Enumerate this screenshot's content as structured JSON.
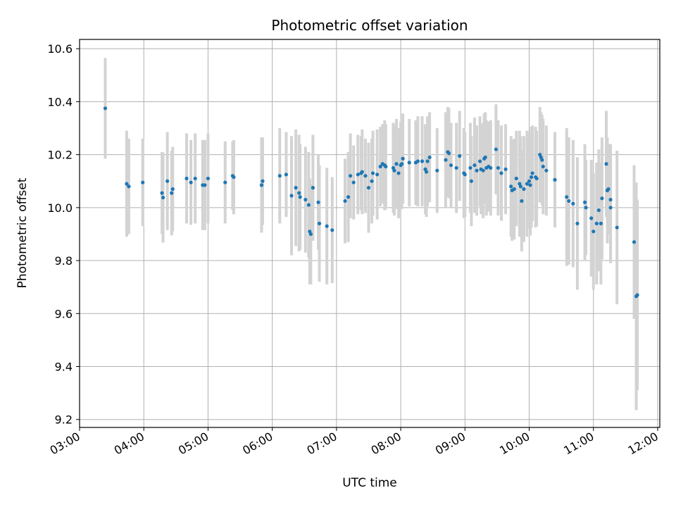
{
  "chart_data": {
    "type": "scatter",
    "title": "Photometric offset variation",
    "xlabel": "UTC time",
    "ylabel": "Photometric offset",
    "xlim": [
      "03:00",
      "12:02"
    ],
    "ylim": [
      9.17,
      10.635
    ],
    "x_ticks": [
      "03:00",
      "04:00",
      "05:00",
      "06:00",
      "07:00",
      "08:00",
      "09:00",
      "10:00",
      "11:00",
      "12:00"
    ],
    "y_ticks": [
      9.2,
      9.4,
      9.6,
      9.8,
      10.0,
      10.2,
      10.4,
      10.6
    ],
    "y_tick_labels": [
      "9.2",
      "9.4",
      "9.6",
      "9.8",
      "10.0",
      "10.2",
      "10.4",
      "10.6"
    ],
    "grid": true,
    "marker_color": "#1f77b4",
    "errorbar_color": "#d3d3d3",
    "points": [
      [
        "03:24",
        10.375,
        0.19
      ],
      [
        "03:44",
        10.09,
        0.2
      ],
      [
        "03:46",
        10.08,
        0.18
      ],
      [
        "03:59",
        10.095,
        0.165
      ],
      [
        "04:17",
        10.055,
        0.155
      ],
      [
        "04:18",
        10.038,
        0.17
      ],
      [
        "04:22",
        10.1,
        0.185
      ],
      [
        "04:26",
        10.055,
        0.16
      ],
      [
        "04:27",
        10.07,
        0.16
      ],
      [
        "04:40",
        10.11,
        0.17
      ],
      [
        "04:44",
        10.095,
        0.16
      ],
      [
        "04:48",
        10.11,
        0.17
      ],
      [
        "04:55",
        10.085,
        0.17
      ],
      [
        "04:57",
        10.085,
        0.17
      ],
      [
        "05:00",
        10.11,
        0.17
      ],
      [
        "05:16",
        10.095,
        0.155
      ],
      [
        "05:23",
        10.12,
        0.13
      ],
      [
        "05:24",
        10.115,
        0.14
      ],
      [
        "05:50",
        10.085,
        0.18
      ],
      [
        "05:51",
        10.1,
        0.165
      ],
      [
        "06:07",
        10.12,
        0.18
      ],
      [
        "06:13",
        10.125,
        0.16
      ],
      [
        "06:18",
        10.045,
        0.225
      ],
      [
        "06:22",
        10.075,
        0.22
      ],
      [
        "06:25",
        10.055,
        0.22
      ],
      [
        "06:26",
        10.04,
        0.2
      ],
      [
        "06:31",
        10.03,
        0.2
      ],
      [
        "06:34",
        10.01,
        0.2
      ],
      [
        "06:35",
        9.91,
        0.2
      ],
      [
        "06:36",
        9.9,
        0.19
      ],
      [
        "06:38",
        10.075,
        0.2
      ],
      [
        "06:43",
        10.02,
        0.18
      ],
      [
        "06:44",
        9.94,
        0.22
      ],
      [
        "06:51",
        9.93,
        0.22
      ],
      [
        "06:56",
        9.915,
        0.2
      ],
      [
        "07:08",
        10.025,
        0.16
      ],
      [
        "07:11",
        10.04,
        0.17
      ],
      [
        "07:13",
        10.12,
        0.16
      ],
      [
        "07:16",
        10.095,
        0.14
      ],
      [
        "07:20",
        10.125,
        0.15
      ],
      [
        "07:23",
        10.13,
        0.14
      ],
      [
        "07:24",
        10.135,
        0.16
      ],
      [
        "07:27",
        10.12,
        0.14
      ],
      [
        "07:30",
        10.075,
        0.17
      ],
      [
        "07:33",
        10.1,
        0.16
      ],
      [
        "07:34",
        10.13,
        0.16
      ],
      [
        "07:38",
        10.125,
        0.17
      ],
      [
        "07:41",
        10.155,
        0.15
      ],
      [
        "07:43",
        10.165,
        0.15
      ],
      [
        "07:45",
        10.16,
        0.17
      ],
      [
        "07:46",
        10.155,
        0.16
      ],
      [
        "07:53",
        10.15,
        0.17
      ],
      [
        "07:54",
        10.14,
        0.17
      ],
      [
        "07:56",
        10.165,
        0.17
      ],
      [
        "07:58",
        10.13,
        0.17
      ],
      [
        "08:00",
        10.16,
        0.165
      ],
      [
        "08:01",
        10.165,
        0.17
      ],
      [
        "08:02",
        10.185,
        0.17
      ],
      [
        "08:08",
        10.17,
        0.165
      ],
      [
        "08:14",
        10.17,
        0.16
      ],
      [
        "08:16",
        10.175,
        0.17
      ],
      [
        "08:20",
        10.175,
        0.17
      ],
      [
        "08:23",
        10.145,
        0.17
      ],
      [
        "08:24",
        10.135,
        0.17
      ],
      [
        "08:25",
        10.175,
        0.17
      ],
      [
        "08:27",
        10.19,
        0.17
      ],
      [
        "08:34",
        10.14,
        0.16
      ],
      [
        "08:42",
        10.18,
        0.18
      ],
      [
        "08:44",
        10.21,
        0.17
      ],
      [
        "08:45",
        10.205,
        0.17
      ],
      [
        "08:47",
        10.16,
        0.16
      ],
      [
        "08:52",
        10.15,
        0.17
      ],
      [
        "08:55",
        10.195,
        0.17
      ],
      [
        "08:59",
        10.13,
        0.17
      ],
      [
        "09:00",
        10.125,
        0.16
      ],
      [
        "09:05",
        10.15,
        0.17
      ],
      [
        "09:06",
        10.1,
        0.17
      ],
      [
        "09:09",
        10.16,
        0.18
      ],
      [
        "09:11",
        10.14,
        0.17
      ],
      [
        "09:14",
        10.175,
        0.17
      ],
      [
        "09:15",
        10.145,
        0.17
      ],
      [
        "09:17",
        10.14,
        0.18
      ],
      [
        "09:18",
        10.185,
        0.17
      ],
      [
        "09:19",
        10.19,
        0.17
      ],
      [
        "09:20",
        10.15,
        0.18
      ],
      [
        "09:22",
        10.155,
        0.17
      ],
      [
        "09:24",
        10.15,
        0.18
      ],
      [
        "09:29",
        10.22,
        0.17
      ],
      [
        "09:31",
        10.15,
        0.18
      ],
      [
        "09:34",
        10.13,
        0.18
      ],
      [
        "09:38",
        10.145,
        0.17
      ],
      [
        "09:43",
        10.08,
        0.19
      ],
      [
        "09:44",
        10.065,
        0.19
      ],
      [
        "09:46",
        10.07,
        0.19
      ],
      [
        "09:48",
        10.11,
        0.18
      ],
      [
        "09:51",
        10.09,
        0.2
      ],
      [
        "09:52",
        10.08,
        0.19
      ],
      [
        "09:53",
        10.025,
        0.19
      ],
      [
        "09:55",
        10.07,
        0.2
      ],
      [
        "09:58",
        10.09,
        0.2
      ],
      [
        "10:00",
        10.1,
        0.18
      ],
      [
        "10:01",
        10.085,
        0.19
      ],
      [
        "10:02",
        10.115,
        0.19
      ],
      [
        "10:03",
        10.13,
        0.18
      ],
      [
        "10:06",
        10.115,
        0.19
      ],
      [
        "10:07",
        10.11,
        0.18
      ],
      [
        "10:10",
        10.2,
        0.18
      ],
      [
        "10:11",
        10.19,
        0.17
      ],
      [
        "10:12",
        10.18,
        0.17
      ],
      [
        "10:13",
        10.155,
        0.18
      ],
      [
        "10:16",
        10.14,
        0.17
      ],
      [
        "10:24",
        10.105,
        0.18
      ],
      [
        "10:35",
        10.04,
        0.26
      ],
      [
        "10:37",
        10.025,
        0.24
      ],
      [
        "10:41",
        10.015,
        0.24
      ],
      [
        "10:45",
        9.94,
        0.25
      ],
      [
        "10:52",
        10.02,
        0.22
      ],
      [
        "10:53",
        10.0,
        0.18
      ],
      [
        "10:58",
        9.96,
        0.22
      ],
      [
        "11:00",
        9.91,
        0.22
      ],
      [
        "11:03",
        9.94,
        0.23
      ],
      [
        "11:05",
        9.99,
        0.23
      ],
      [
        "11:07",
        9.94,
        0.23
      ],
      [
        "11:08",
        10.035,
        0.23
      ],
      [
        "11:12",
        10.165,
        0.2
      ],
      [
        "11:13",
        10.065,
        0.2
      ],
      [
        "11:14",
        10.07,
        0.17
      ],
      [
        "11:16",
        10.0,
        0.21
      ],
      [
        "11:16",
        10.03,
        0.21
      ],
      [
        "11:22",
        9.925,
        0.29
      ],
      [
        "11:38",
        9.87,
        0.29
      ],
      [
        "11:40",
        9.665,
        0.43
      ],
      [
        "11:41",
        9.67,
        0.36
      ]
    ]
  }
}
